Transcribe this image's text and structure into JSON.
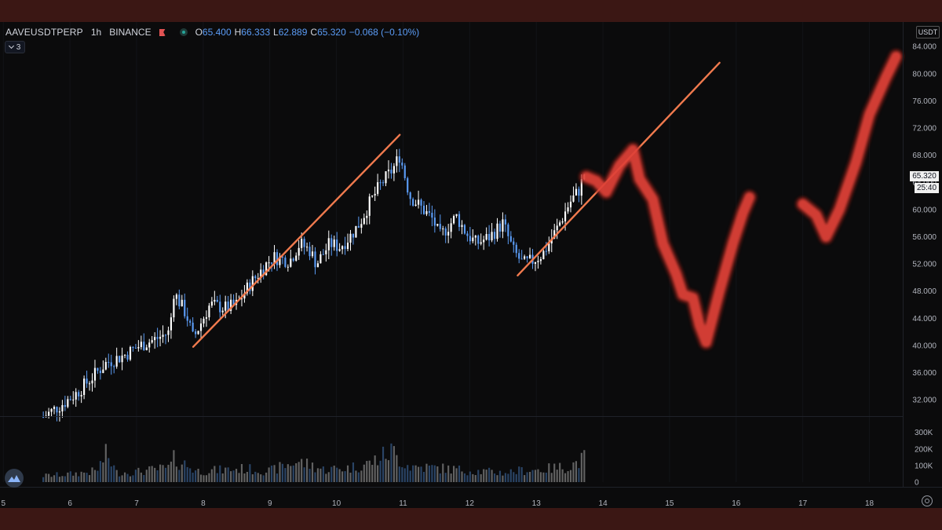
{
  "legend": {
    "symbol": "AAVEUSDTPERP",
    "interval": "1h",
    "exchange": "BINANCE",
    "open_label": "O",
    "open": "65.400",
    "high_label": "H",
    "high": "66.333",
    "low_label": "L",
    "low": "62.889",
    "close_label": "C",
    "close": "65.320",
    "change": "−0.068 (−0.10%)",
    "indicator_count": "3"
  },
  "price_axis": {
    "currency": "USDT",
    "last_price": "65.320",
    "countdown": "25:40"
  },
  "colors": {
    "background": "#0b0b0c",
    "up_candle": "#ffffff",
    "down_candle": "#5b9cf6",
    "trendline": "#f07a4e",
    "forecast_stroke": "#e8453a",
    "volume": "#5c5c5c",
    "frame": "#3b1714"
  },
  "chart_data": {
    "type": "candlestick",
    "price_ticks": [
      "84.000",
      "80.000",
      "76.000",
      "72.000",
      "68.000",
      "64.000",
      "60.000",
      "56.000",
      "52.000",
      "48.000",
      "44.000",
      "40.000",
      "36.000",
      "32.000"
    ],
    "volume_ticks": [
      "300K",
      "200K",
      "100K",
      "0"
    ],
    "time_ticks": [
      "5",
      "6",
      "7",
      "8",
      "9",
      "10",
      "11",
      "12",
      "13",
      "14",
      "15",
      "16",
      "17",
      "18"
    ],
    "price_waypoints": [
      [
        5.6,
        29.5
      ],
      [
        5.9,
        31.5
      ],
      [
        6.1,
        33
      ],
      [
        6.3,
        35
      ],
      [
        6.55,
        37.5
      ],
      [
        6.8,
        38.5
      ],
      [
        7.05,
        40
      ],
      [
        7.3,
        41
      ],
      [
        7.5,
        42
      ],
      [
        7.55,
        48
      ],
      [
        7.75,
        44.5
      ],
      [
        7.85,
        41
      ],
      [
        8.1,
        46
      ],
      [
        8.35,
        45.5
      ],
      [
        8.5,
        46
      ],
      [
        8.7,
        49
      ],
      [
        8.95,
        52
      ],
      [
        9.05,
        53
      ],
      [
        9.3,
        52.5
      ],
      [
        9.45,
        55
      ],
      [
        9.6,
        54
      ],
      [
        9.7,
        52
      ],
      [
        9.9,
        55
      ],
      [
        10.05,
        54.5
      ],
      [
        10.2,
        56
      ],
      [
        10.35,
        58
      ],
      [
        10.5,
        61
      ],
      [
        10.65,
        63.5
      ],
      [
        10.85,
        66
      ],
      [
        10.95,
        68
      ],
      [
        11.1,
        62
      ],
      [
        11.3,
        60
      ],
      [
        11.45,
        58.5
      ],
      [
        11.55,
        56
      ],
      [
        11.8,
        59
      ],
      [
        11.95,
        56.5
      ],
      [
        12.1,
        55
      ],
      [
        12.3,
        56
      ],
      [
        12.5,
        58
      ],
      [
        12.65,
        54
      ],
      [
        12.8,
        52
      ],
      [
        12.95,
        52.5
      ],
      [
        13.1,
        53.5
      ],
      [
        13.3,
        57
      ],
      [
        13.5,
        61
      ],
      [
        13.65,
        63
      ],
      [
        13.72,
        65.3
      ]
    ],
    "volume_waypoints": [
      [
        5.6,
        40
      ],
      [
        6.0,
        50
      ],
      [
        6.4,
        70
      ],
      [
        6.55,
        180
      ],
      [
        6.7,
        60
      ],
      [
        7.0,
        65
      ],
      [
        7.5,
        90
      ],
      [
        7.55,
        145
      ],
      [
        7.7,
        120
      ],
      [
        7.9,
        70
      ],
      [
        8.2,
        75
      ],
      [
        8.6,
        85
      ],
      [
        9.0,
        70
      ],
      [
        9.4,
        130
      ],
      [
        9.6,
        110
      ],
      [
        9.8,
        80
      ],
      [
        10.2,
        90
      ],
      [
        10.5,
        120
      ],
      [
        10.85,
        200
      ],
      [
        10.9,
        160
      ],
      [
        11.1,
        100
      ],
      [
        11.5,
        90
      ],
      [
        11.8,
        80
      ],
      [
        12.1,
        70
      ],
      [
        12.5,
        60
      ],
      [
        12.8,
        75
      ],
      [
        13.1,
        80
      ],
      [
        13.5,
        100
      ],
      [
        13.72,
        150
      ]
    ],
    "trendlines": [
      {
        "from": [
          7.85,
          39.8
        ],
        "to": [
          10.95,
          71.0
        ]
      },
      {
        "from": [
          12.72,
          50.3
        ],
        "to": [
          15.75,
          81.6
        ]
      }
    ],
    "forecast_path": [
      [
        13.75,
        64.8
      ],
      [
        13.9,
        64.2
      ],
      [
        14.05,
        62.6
      ],
      [
        14.25,
        66.5
      ],
      [
        14.45,
        68.8
      ],
      [
        14.55,
        64.5
      ],
      [
        14.75,
        61.5
      ],
      [
        14.9,
        55
      ],
      [
        15.1,
        50.5
      ],
      [
        15.2,
        47.5
      ],
      [
        15.35,
        47
      ],
      [
        15.45,
        43
      ],
      [
        15.55,
        40.5
      ],
      [
        15.75,
        48
      ],
      [
        15.95,
        55
      ],
      [
        16.1,
        59.5
      ],
      [
        16.2,
        61.8
      ],
      [
        17.0,
        60.8
      ],
      [
        17.2,
        59.2
      ],
      [
        17.35,
        56
      ],
      [
        17.55,
        60
      ],
      [
        17.8,
        67
      ],
      [
        18.0,
        74
      ],
      [
        18.25,
        79.5
      ],
      [
        18.4,
        82.5
      ]
    ],
    "price_range": [
      29.6,
      87.6
    ],
    "time_range": [
      4.95,
      18.5
    ],
    "volume_range": [
      0,
      360
    ]
  }
}
